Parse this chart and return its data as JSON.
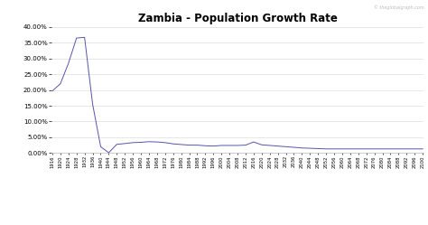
{
  "title": "Zambia - Population Growth Rate",
  "watermark": "© theglobalgraph.com",
  "line_color": "#5555aa",
  "background_color": "#ffffff",
  "grid_color": "#dddddd",
  "years": [
    1916,
    1920,
    1924,
    1928,
    1932,
    1936,
    1940,
    1944,
    1948,
    1952,
    1956,
    1960,
    1964,
    1968,
    1972,
    1976,
    1980,
    1984,
    1988,
    1992,
    1996,
    2000,
    2004,
    2008,
    2012,
    2016,
    2020,
    2024,
    2028,
    2032,
    2036,
    2040,
    2044,
    2048,
    2052,
    2056,
    2060,
    2064,
    2068,
    2072,
    2076,
    2080,
    2084,
    2088,
    2092,
    2096,
    2100
  ],
  "values": [
    0.197,
    0.22,
    0.285,
    0.365,
    0.367,
    0.155,
    0.02,
    0.001,
    0.0275,
    0.03,
    0.033,
    0.034,
    0.036,
    0.035,
    0.033,
    0.029,
    0.027,
    0.025,
    0.025,
    0.023,
    0.022,
    0.024,
    0.024,
    0.024,
    0.025,
    0.035,
    0.026,
    0.024,
    0.022,
    0.02,
    0.018,
    0.016,
    0.015,
    0.014,
    0.013,
    0.013,
    0.013,
    0.013,
    0.013,
    0.013,
    0.013,
    0.013,
    0.013,
    0.013,
    0.013,
    0.013,
    0.013
  ],
  "ylim": [
    0.0,
    0.4
  ],
  "yticks": [
    0.0,
    0.05,
    0.1,
    0.15,
    0.2,
    0.25,
    0.3,
    0.35,
    0.4
  ],
  "title_fontsize": 8.5,
  "xtick_fontsize": 3.8,
  "ytick_fontsize": 5.0,
  "watermark_fontsize": 3.5
}
